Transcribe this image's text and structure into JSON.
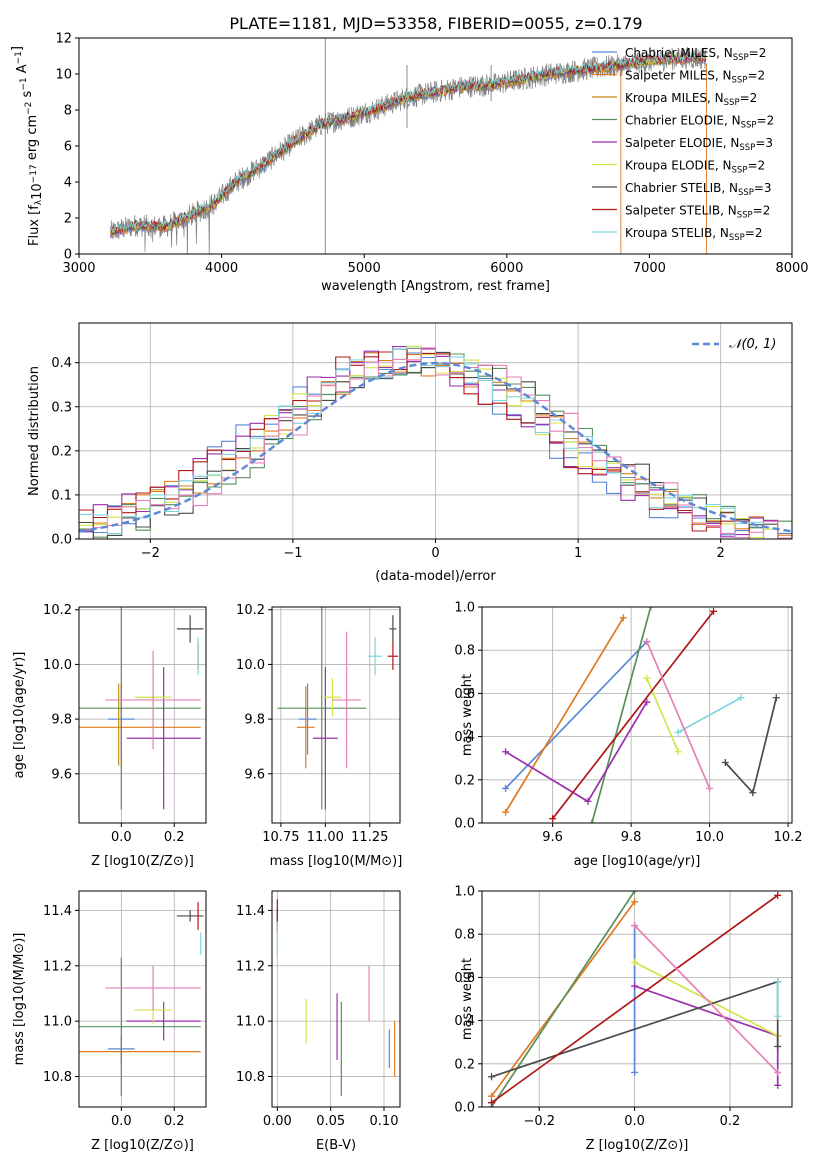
{
  "figure_title": "PLATE=1181, MJD=53358, FIBERID=0055, z=0.179",
  "colors": {
    "Chabrier MILES": "#5b87d6",
    "Salpeter MILES": "#e07a1f",
    "Kroupa MILES": "#c98a1a",
    "Chabrier ELODIE": "#5a8f5a",
    "Salpeter ELODIE": "#9b2fae",
    "Kroupa ELODIE": "#d4e34a",
    "Chabrier STELIB": "#4a4a4a",
    "Salpeter STELIB": "#b01818",
    "Kroupa STELIB": "#7fd6dc",
    "Pink": "#e680b8",
    "data_gray": "#808080",
    "gauss": "#5b87d6"
  },
  "chart_data": [
    {
      "id": "spectrum",
      "type": "line",
      "title": "PLATE=1181, MJD=53358, FIBERID=0055, z=0.179",
      "xlabel": "wavelength [Angstrom, rest frame]",
      "ylabel": "Flux [f_λ 10^-17 erg cm^-2 s^-1 A^-1]",
      "xlim": [
        3000,
        8000
      ],
      "ylim": [
        0,
        12
      ],
      "xticks": [
        "3000",
        "4000",
        "5000",
        "6000",
        "7000",
        "8000"
      ],
      "yticks": [
        "0",
        "2",
        "4",
        "6",
        "8",
        "10",
        "12"
      ],
      "legend": [
        {
          "name": "Chabrier MILES, N_SSP=2",
          "label": "Chabrier MILES, N",
          "sub": "SSP",
          "tail": "=2",
          "color": "#5b87d6"
        },
        {
          "name": "Salpeter MILES, N_SSP=2",
          "label": "Salpeter MILES, N",
          "sub": "SSP",
          "tail": "=2",
          "color": "#e07a1f"
        },
        {
          "name": "Kroupa MILES, N_SSP=2",
          "label": "Kroupa MILES, N",
          "sub": "SSP",
          "tail": "=2",
          "color": "#c98a1a"
        },
        {
          "name": "Chabrier ELODIE, N_SSP=2",
          "label": "Chabrier ELODIE, N",
          "sub": "SSP",
          "tail": "=2",
          "color": "#5a8f5a"
        },
        {
          "name": "Salpeter ELODIE, N_SSP=3",
          "label": "Salpeter ELODIE, N",
          "sub": "SSP",
          "tail": "=3",
          "color": "#9b2fae"
        },
        {
          "name": "Kroupa ELODIE, N_SSP=2",
          "label": "Kroupa ELODIE, N",
          "sub": "SSP",
          "tail": "=2",
          "color": "#d4e34a"
        },
        {
          "name": "Chabrier STELIB, N_SSP=3",
          "label": "Chabrier STELIB, N",
          "sub": "SSP",
          "tail": "=3",
          "color": "#4a4a4a"
        },
        {
          "name": "Salpeter STELIB, N_SSP=2",
          "label": "Salpeter STELIB, N",
          "sub": "SSP",
          "tail": "=2",
          "color": "#b01818"
        },
        {
          "name": "Kroupa STELIB, N_SSP=2",
          "label": "Kroupa STELIB, N",
          "sub": "SSP",
          "tail": "=2",
          "color": "#7fd6dc"
        }
      ],
      "continuum": [
        [
          3220,
          1.2
        ],
        [
          3400,
          1.6
        ],
        [
          3600,
          1.5
        ],
        [
          3800,
          2.2
        ],
        [
          3950,
          2.8
        ],
        [
          4100,
          4.0
        ],
        [
          4300,
          5.0
        ],
        [
          4500,
          6.2
        ],
        [
          4700,
          7.2
        ],
        [
          4900,
          7.6
        ],
        [
          5100,
          8.1
        ],
        [
          5300,
          8.7
        ],
        [
          5500,
          9.0
        ],
        [
          5700,
          9.3
        ],
        [
          5900,
          9.4
        ],
        [
          6100,
          9.7
        ],
        [
          6300,
          10.0
        ],
        [
          6500,
          10.2
        ],
        [
          6700,
          10.4
        ],
        [
          6900,
          10.6
        ],
        [
          7100,
          10.8
        ],
        [
          7300,
          10.9
        ],
        [
          7400,
          10.9
        ]
      ]
    },
    {
      "id": "residuals",
      "type": "histogram",
      "xlabel": "(data-model)/error",
      "ylabel": "Normed distribution",
      "xlim": [
        -2.5,
        2.5
      ],
      "ylim": [
        0,
        0.49
      ],
      "xticks": [
        "−2",
        "−1",
        "0",
        "1",
        "2"
      ],
      "yticks": [
        "0.0",
        "0.1",
        "0.2",
        "0.3",
        "0.4"
      ],
      "grid": true,
      "legend": [
        "N(0,1)"
      ]
    },
    {
      "id": "age_vs_Z",
      "type": "errorbar",
      "xlabel": "Z [log10(Z/Z⊙)]",
      "ylabel": "age [log10(age/yr)]",
      "xlim": [
        -0.16,
        0.32
      ],
      "ylim": [
        9.42,
        10.21
      ],
      "xticks": [
        "0.0",
        "0.2"
      ],
      "yticks": [
        "9.6",
        "9.8",
        "10.0",
        "10.2"
      ],
      "points": [
        {
          "series": "Chabrier MILES",
          "x": 0.0,
          "y": 9.8,
          "xerr": 0.05,
          "yerr": 0.13
        },
        {
          "series": "Salpeter MILES",
          "x": 0.0,
          "y": 9.77,
          "xerr": 0.3,
          "yerr": 0.15
        },
        {
          "series": "Kroupa MILES",
          "x": -0.01,
          "y": 9.78,
          "xerr": 0.0,
          "yerr": 0.15
        },
        {
          "series": "Chabrier ELODIE",
          "x": 0.0,
          "y": 9.84,
          "xerr": 0.3,
          "yerr": 0.37
        },
        {
          "series": "Salpeter ELODIE",
          "x": 0.16,
          "y": 9.73,
          "xerr": 0.14,
          "yerr": 0.26
        },
        {
          "series": "Kroupa ELODIE",
          "x": 0.12,
          "y": 9.88,
          "xerr": 0.07,
          "yerr": 0.07
        },
        {
          "series": "Chabrier STELIB",
          "x": 0.26,
          "y": 10.13,
          "xerr": 0.05,
          "yerr": 0.05
        },
        {
          "series": "Salpeter STELIB",
          "x": 0.29,
          "y": 10.03,
          "xerr": 0.0,
          "yerr": 0.05
        },
        {
          "series": "Kroupa STELIB",
          "x": 0.29,
          "y": 10.03,
          "xerr": 0.0,
          "yerr": 0.07
        },
        {
          "series": "Pink",
          "x": 0.12,
          "y": 9.87,
          "xerr": 0.18,
          "yerr": 0.18
        }
      ]
    },
    {
      "id": "age_vs_mass",
      "type": "errorbar",
      "xlabel": "mass [log10(M/M⊙)]",
      "ylabel": "",
      "xlim": [
        10.7,
        11.42
      ],
      "ylim": [
        9.42,
        10.21
      ],
      "xticks": [
        "10.75",
        "11.00",
        "11.25"
      ],
      "yticks": [
        "9.6",
        "9.8",
        "10.0",
        "10.2"
      ],
      "points": [
        {
          "series": "Chabrier MILES",
          "x": 10.9,
          "y": 9.8,
          "xerr": 0.05,
          "yerr": 0.13
        },
        {
          "series": "Salpeter MILES",
          "x": 10.89,
          "y": 9.77,
          "xerr": 0.05,
          "yerr": 0.15
        },
        {
          "series": "Chabrier ELODIE",
          "x": 10.98,
          "y": 9.84,
          "xerr": 0.25,
          "yerr": 0.37
        },
        {
          "series": "Salpeter ELODIE",
          "x": 11.0,
          "y": 9.73,
          "xerr": 0.07,
          "yerr": 0.26
        },
        {
          "series": "Kroupa ELODIE",
          "x": 11.04,
          "y": 9.88,
          "xerr": 0.05,
          "yerr": 0.07
        },
        {
          "series": "Chabrier STELIB",
          "x": 11.38,
          "y": 10.13,
          "xerr": 0.02,
          "yerr": 0.05
        },
        {
          "series": "Salpeter STELIB",
          "x": 11.38,
          "y": 10.03,
          "xerr": 0.03,
          "yerr": 0.05
        },
        {
          "series": "Kroupa STELIB",
          "x": 11.28,
          "y": 10.03,
          "xerr": 0.04,
          "yerr": 0.07
        },
        {
          "series": "Pink",
          "x": 11.12,
          "y": 9.87,
          "xerr": 0.08,
          "yerr": 0.25
        }
      ]
    },
    {
      "id": "weight_vs_age",
      "type": "line",
      "xlabel": "age [log10(age/yr)]",
      "ylabel": "mass weight",
      "xlim": [
        9.42,
        10.21
      ],
      "ylim": [
        0,
        1.0
      ],
      "xticks": [
        "9.6",
        "9.8",
        "10.0",
        "10.2"
      ],
      "yticks": [
        "0.0",
        "0.2",
        "0.4",
        "0.6",
        "0.8",
        "1.0"
      ],
      "grid": true,
      "series": [
        {
          "name": "Chabrier MILES",
          "color": "#5b87d6",
          "points": [
            [
              9.48,
              0.16
            ],
            [
              9.84,
              0.84
            ]
          ]
        },
        {
          "name": "Salpeter MILES",
          "color": "#e07a1f",
          "points": [
            [
              9.48,
              0.05
            ],
            [
              9.78,
              0.95
            ]
          ]
        },
        {
          "name": "Chabrier ELODIE",
          "color": "#5a8f5a",
          "points": [
            [
              9.7,
              0.0
            ],
            [
              9.85,
              1.0
            ]
          ]
        },
        {
          "name": "Salpeter ELODIE",
          "color": "#9b2fae",
          "points": [
            [
              9.48,
              0.33
            ],
            [
              9.69,
              0.1
            ],
            [
              9.84,
              0.56
            ]
          ]
        },
        {
          "name": "Kroupa ELODIE",
          "color": "#d4e34a",
          "points": [
            [
              9.84,
              0.67
            ],
            [
              9.92,
              0.33
            ]
          ]
        },
        {
          "name": "Chabrier STELIB",
          "color": "#4a4a4a",
          "points": [
            [
              10.04,
              0.28
            ],
            [
              10.11,
              0.14
            ],
            [
              10.17,
              0.58
            ]
          ]
        },
        {
          "name": "Salpeter STELIB",
          "color": "#b01818",
          "points": [
            [
              9.6,
              0.02
            ],
            [
              10.01,
              0.98
            ]
          ]
        },
        {
          "name": "Kroupa STELIB",
          "color": "#7fd6dc",
          "points": [
            [
              9.92,
              0.42
            ],
            [
              10.08,
              0.58
            ]
          ]
        },
        {
          "name": "Pink",
          "color": "#e680b8",
          "points": [
            [
              9.84,
              0.84
            ],
            [
              10.0,
              0.16
            ]
          ]
        }
      ]
    },
    {
      "id": "mass_vs_Z",
      "type": "errorbar",
      "xlabel": "Z [log10(Z/Z⊙)]",
      "ylabel": "mass [log10(M/M⊙)]",
      "xlim": [
        -0.16,
        0.32
      ],
      "ylim": [
        10.69,
        11.47
      ],
      "xticks": [
        "0.0",
        "0.2"
      ],
      "yticks": [
        "10.8",
        "11.0",
        "11.2",
        "11.4"
      ],
      "points": [
        {
          "series": "Chabrier MILES",
          "x": 0.0,
          "y": 10.9,
          "xerr": 0.05,
          "yerr": 0.05
        },
        {
          "series": "Salpeter MILES",
          "x": 0.0,
          "y": 10.89,
          "xerr": 0.3,
          "yerr": 0.05
        },
        {
          "series": "Chabrier ELODIE",
          "x": 0.0,
          "y": 10.98,
          "xerr": 0.3,
          "yerr": 0.25
        },
        {
          "series": "Salpeter ELODIE",
          "x": 0.16,
          "y": 11.0,
          "xerr": 0.14,
          "yerr": 0.07
        },
        {
          "series": "Kroupa ELODIE",
          "x": 0.12,
          "y": 11.04,
          "xerr": 0.07,
          "yerr": 0.05
        },
        {
          "series": "Chabrier STELIB",
          "x": 0.26,
          "y": 11.38,
          "xerr": 0.05,
          "yerr": 0.02
        },
        {
          "series": "Salpeter STELIB",
          "x": 0.29,
          "y": 11.38,
          "xerr": 0.0,
          "yerr": 0.05
        },
        {
          "series": "Kroupa STELIB",
          "x": 0.3,
          "y": 11.28,
          "xerr": 0.0,
          "yerr": 0.04
        },
        {
          "series": "Pink",
          "x": 0.12,
          "y": 11.12,
          "xerr": 0.18,
          "yerr": 0.08
        }
      ]
    },
    {
      "id": "mass_vs_ebv",
      "type": "errorbar",
      "xlabel": "E(B-V)",
      "ylabel": "",
      "xlim": [
        -0.005,
        0.115
      ],
      "ylim": [
        10.69,
        11.47
      ],
      "xticks": [
        "0.00",
        "0.05",
        "0.10"
      ],
      "yticks": [
        "10.8",
        "11.0",
        "11.2",
        "11.4"
      ],
      "points": [
        {
          "series": "Chabrier MILES",
          "x": 0.105,
          "y": 10.9,
          "yerr": 0.07
        },
        {
          "series": "Salpeter MILES",
          "x": 0.11,
          "y": 10.9,
          "yerr": 0.1
        },
        {
          "series": "Chabrier ELODIE",
          "x": 0.06,
          "y": 10.9,
          "yerr": 0.17
        },
        {
          "series": "Salpeter ELODIE",
          "x": 0.056,
          "y": 10.98,
          "yerr": 0.12
        },
        {
          "series": "Kroupa ELODIE",
          "x": 0.027,
          "y": 11.0,
          "yerr": 0.08
        },
        {
          "series": "Chabrier STELIB",
          "x": 0.0,
          "y": 11.38,
          "yerr": 0.03
        },
        {
          "series": "Salpeter STELIB",
          "x": 0.0,
          "y": 11.38,
          "yerr": 0.06
        },
        {
          "series": "Kroupa STELIB",
          "x": 0.0,
          "y": 11.3,
          "yerr": 0.06
        },
        {
          "series": "Pink",
          "x": 0.086,
          "y": 11.1,
          "yerr": 0.1
        }
      ]
    },
    {
      "id": "weight_vs_Z",
      "type": "line",
      "xlabel": "Z [log10(Z/Z⊙)]",
      "ylabel": "mass weight",
      "xlim": [
        -0.32,
        0.33
      ],
      "ylim": [
        0,
        1.0
      ],
      "xticks": [
        "−0.2",
        "0.0",
        "0.2"
      ],
      "yticks": [
        "0.0",
        "0.2",
        "0.4",
        "0.6",
        "0.8",
        "1.0"
      ],
      "grid": true,
      "series": [
        {
          "name": "Chabrier MILES",
          "color": "#5b87d6",
          "points": [
            [
              0.0,
              0.16
            ],
            [
              0.0,
              0.84
            ]
          ]
        },
        {
          "name": "Salpeter MILES",
          "color": "#e07a1f",
          "points": [
            [
              -0.3,
              0.05
            ],
            [
              0.0,
              0.95
            ]
          ]
        },
        {
          "name": "Chabrier ELODIE",
          "color": "#5a8f5a",
          "points": [
            [
              -0.3,
              0.0
            ],
            [
              0.0,
              1.0
            ]
          ]
        },
        {
          "name": "Salpeter ELODIE",
          "color": "#9b2fae",
          "points": [
            [
              0.0,
              0.56
            ],
            [
              0.3,
              0.33
            ],
            [
              0.3,
              0.1
            ]
          ]
        },
        {
          "name": "Kroupa ELODIE",
          "color": "#d4e34a",
          "points": [
            [
              0.0,
              0.67
            ],
            [
              0.3,
              0.33
            ]
          ]
        },
        {
          "name": "Chabrier STELIB",
          "color": "#4a4a4a",
          "points": [
            [
              -0.3,
              0.14
            ],
            [
              0.3,
              0.58
            ],
            [
              0.3,
              0.28
            ]
          ]
        },
        {
          "name": "Salpeter STELIB",
          "color": "#b01818",
          "points": [
            [
              -0.3,
              0.02
            ],
            [
              0.3,
              0.98
            ]
          ]
        },
        {
          "name": "Kroupa STELIB",
          "color": "#7fd6dc",
          "points": [
            [
              0.3,
              0.42
            ],
            [
              0.3,
              0.58
            ]
          ]
        },
        {
          "name": "Pink",
          "color": "#e680b8",
          "points": [
            [
              0.0,
              0.84
            ],
            [
              0.3,
              0.16
            ]
          ]
        }
      ]
    }
  ]
}
